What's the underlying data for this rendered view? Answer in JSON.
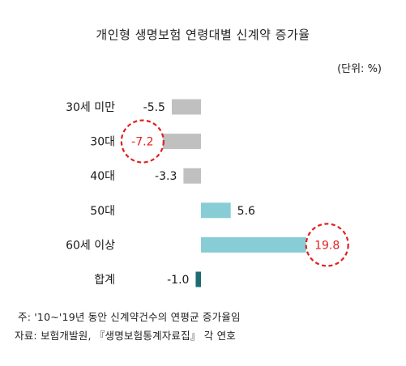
{
  "title": "개인형 생명보험 연령대별 신계약 증가율",
  "unit_label": "(단위: %)",
  "footnotes": {
    "note": "주: '10~'19년 동안 신계약건수의 연평균 증가율임",
    "source": "자료: 보험개발원, 『생명보험통계자료집』 각 연호"
  },
  "colors": {
    "negative_bar": "#c0c0c0",
    "positive_bar": "#88cdd6",
    "total_bar": "#1f6b73",
    "highlight_circle": "#e02020",
    "highlight_text": "#e02020"
  },
  "chart_data": {
    "type": "bar",
    "orientation": "horizontal",
    "title": "개인형 생명보험 연령대별 신계약 증가율",
    "unit": "%",
    "categories": [
      "30세 미만",
      "30대",
      "40대",
      "50대",
      "60세 이상",
      "합계"
    ],
    "values": [
      -5.5,
      -7.2,
      -3.3,
      5.6,
      19.8,
      -1.0
    ],
    "value_labels": [
      "-5.5",
      "-7.2",
      "-3.3",
      "5.6",
      "19.8",
      "-1.0"
    ],
    "highlighted": [
      "30대",
      "60세 이상"
    ],
    "grid": false,
    "legend": "none"
  }
}
